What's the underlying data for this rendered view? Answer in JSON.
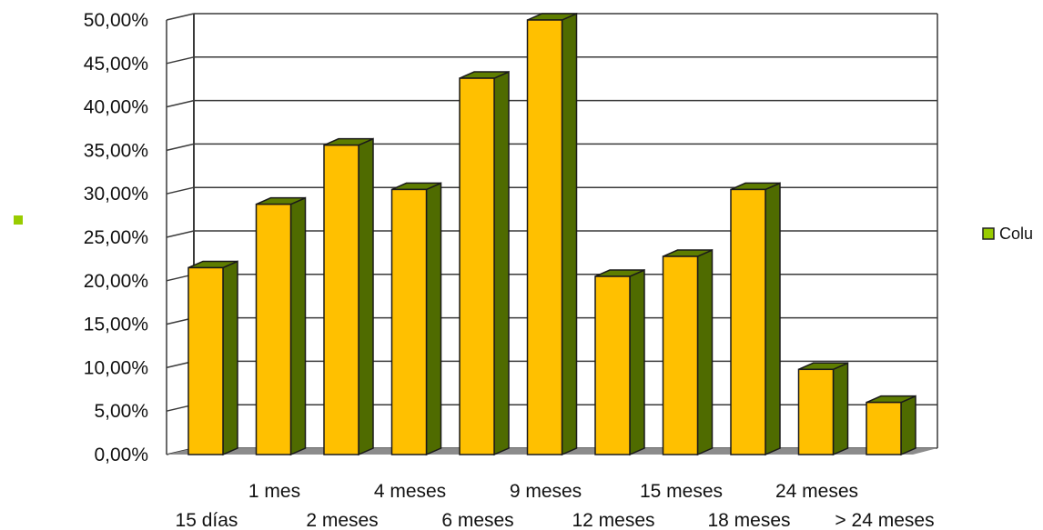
{
  "chart_data": {
    "type": "bar",
    "title": "",
    "xlabel": "",
    "ylabel": "",
    "ylim": [
      0,
      50
    ],
    "y_ticks": [
      "0,00%",
      "5,00%",
      "10,00%",
      "15,00%",
      "20,00%",
      "25,00%",
      "30,00%",
      "35,00%",
      "40,00%",
      "45,00%",
      "50,00%"
    ],
    "categories": [
      "15 días",
      "1 mes",
      "2 meses",
      "4 meses",
      "6 meses",
      "9 meses",
      "12 meses",
      "15 meses",
      "18 meses",
      "24 meses",
      "> 24 meses"
    ],
    "series": [
      {
        "name": "Colu",
        "values": [
          21.5,
          28.8,
          35.6,
          30.5,
          43.3,
          50.0,
          20.5,
          22.8,
          30.5,
          9.8,
          6.0
        ]
      }
    ],
    "grid": true,
    "legend": "right",
    "colors": {
      "bar_front": "#ffc000",
      "bar_side": "#4f6b00",
      "bar_top": "#5e7d00",
      "floor": "#8c8c8c",
      "grid": "#3a3a3a",
      "legend_left_marker": "#99cc00",
      "legend_marker": "#99cc00"
    }
  }
}
